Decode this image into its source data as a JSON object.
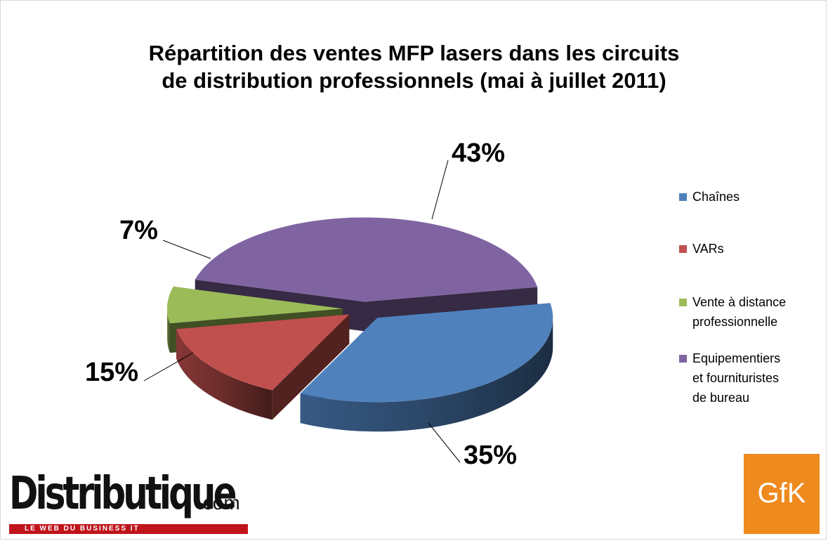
{
  "page": {
    "title": "Répartition des ventes MFP lasers dans les circuits\nde distribution professionnels (mai à juillet 2011)"
  },
  "chart_data": {
    "type": "pie",
    "title": "Répartition des ventes MFP lasers dans les circuits\nde distribution professionnels (mai à juillet 2011)",
    "slices": [
      {
        "name": "Chaînes",
        "value": 35,
        "label": "35%",
        "color": "#4f81bd"
      },
      {
        "name": "VARs",
        "value": 15,
        "label": "15%",
        "color": "#c0504d"
      },
      {
        "name": "Vente à distance\nprofessionnelle",
        "value": 7,
        "label": "7%",
        "color": "#9bbb59"
      },
      {
        "name": "Equipementiers\net fourniturisstes\nde bureau",
        "value": 43,
        "label": "43%",
        "color": "#8064a2"
      }
    ],
    "legend_position": "right",
    "style": "3d-exploded"
  },
  "logos": {
    "distributique_main": "Distributique",
    "distributique_domain": ".com",
    "distributique_tagline": "LE WEB DU BUSINESS IT",
    "gfk": "GfK"
  }
}
